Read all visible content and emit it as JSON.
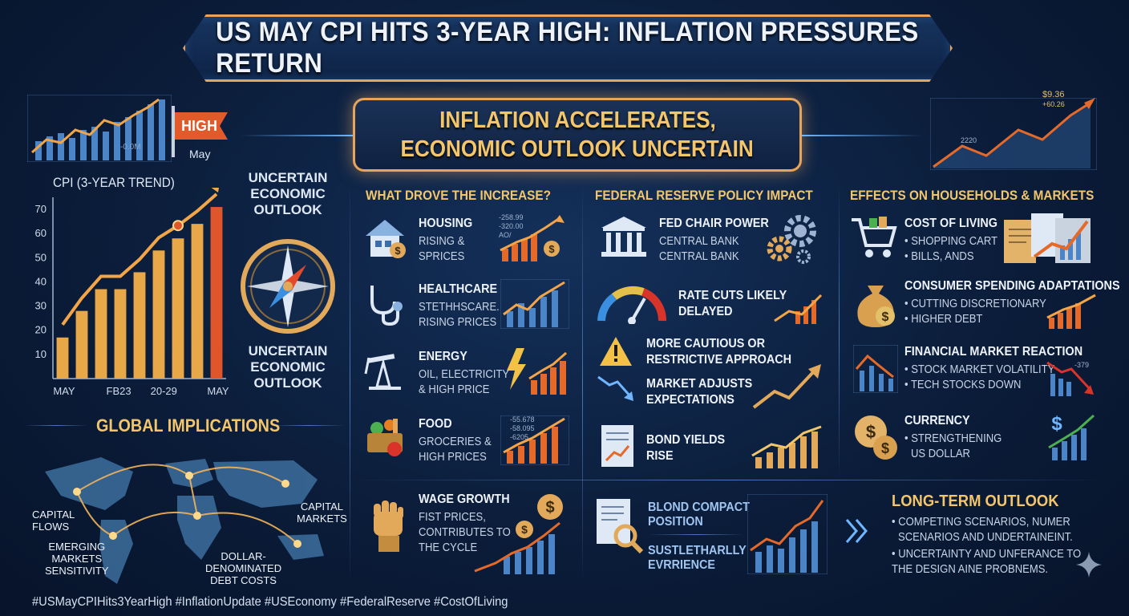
{
  "title": "US MAY CPI HITS 3-YEAR HIGH: INFLATION PRESSURES RETURN",
  "subtitle": [
    "INFLATION ACCELERATES,",
    "ECONOMIC OUTLOOK UNCERTAIN"
  ],
  "left": {
    "flag_label": "HIGH",
    "flag_month": "May",
    "chart_title": "CPI (3-YEAR TREND)",
    "mini_axis_label": "-0.0M",
    "compass_top": [
      "UNCERTAIN",
      "ECONOMIC",
      "OUTLOOK"
    ],
    "compass_bottom": [
      "UNCERTAIN",
      "ECONOMIC",
      "OUTLOOK"
    ],
    "global_title": "GLOBAL IMPLICATIONS",
    "map_labels": {
      "capital_flows": [
        "CAPITAL",
        "FLOWS"
      ],
      "capital_markets": [
        "CAPITAL",
        "MARKETS"
      ],
      "emerging": [
        "EMERGING",
        "MARKETS",
        "SENSITIVITY"
      ],
      "dollar": [
        "DOLLAR-",
        "DENOMINATED",
        "DEBT COSTS"
      ]
    }
  },
  "chart_data": {
    "type": "bar",
    "title": "CPI (3-YEAR TREND)",
    "y_ticks": [
      "70",
      "60",
      "50",
      "40",
      "30",
      "20",
      "10"
    ],
    "x_ticks": [
      "MAY",
      "FB23",
      "20-29",
      "MAY"
    ],
    "values": [
      17,
      28,
      37,
      37,
      44,
      53,
      58,
      64,
      71
    ],
    "ylim": [
      0,
      75
    ]
  },
  "col1": {
    "title": "WHAT DROVE THE INCREASE?",
    "items": [
      {
        "title": "HOUSING",
        "sub": [
          "RISING &",
          "SPRICES"
        ],
        "tags": [
          "-258.99",
          "-320.00",
          "AO/"
        ]
      },
      {
        "title": "HEALTHCARE",
        "sub": [
          "STETHHSCARE.",
          "RISING PRICES"
        ],
        "tags": []
      },
      {
        "title": "ENERGY",
        "sub": [
          "OIL, ELECTRICITY",
          "& HIGH PRICE"
        ],
        "tags": []
      },
      {
        "title": "FOOD",
        "sub": [
          "GROCERIES &",
          "HIGH PRICES"
        ],
        "tags": [
          "-55.678",
          "-58.095",
          "-6205"
        ]
      },
      {
        "title": "WAGE GROWTH",
        "sub": [
          "FIST PRICES,",
          "CONTRIBUTES TO",
          "THE CYCLE"
        ],
        "tags": []
      }
    ]
  },
  "col2": {
    "title": "FEDERAL RESERVE POLICY IMPACT",
    "items": [
      {
        "title": "FED CHAIR POWER",
        "sub": [
          "CENTRAL BANK",
          "CENTRAL BANK"
        ]
      },
      {
        "title": "RATE CUTS LIKELY",
        "sub": [
          "DELAYED"
        ]
      },
      {
        "title": "MORE CAUTIOUS OR",
        "sub": [
          "RESTRICTIVE APPROACH"
        ]
      },
      {
        "title": "MARKET ADJUSTS",
        "sub": [
          "EXPECTATIONS"
        ]
      },
      {
        "title": "BOND YIELDS",
        "sub": [
          "RISE"
        ]
      },
      {
        "title": "BLOND COMPACT",
        "sub": [
          "POSITION"
        ]
      },
      {
        "title": "SUSTLETHARLLY",
        "sub": [
          "EVRRIENCE"
        ]
      }
    ]
  },
  "col3": {
    "title": "EFFECTS ON HOUSEHOLDS & MARKETS",
    "items": [
      {
        "title": "COST OF LIVING",
        "sub": [
          "• SHOPPING CART",
          "• BILLS, ANDS"
        ]
      },
      {
        "title": "CONSUMER SPENDING ADAPTATIONS",
        "sub": [
          "• CUTTING DISCRETIONARY",
          "• HIGHER DEBT"
        ]
      },
      {
        "title": "FINANCIAL MARKET REACTION",
        "sub": [
          "• STOCK MARKET VOLATILITY",
          "• TECH STOCKS DOWN"
        ],
        "tag": "-379"
      },
      {
        "title": "CURRENCY",
        "sub": [
          "• STRENGTHENING",
          "US DOLLAR"
        ]
      }
    ],
    "top_chart_tags": [
      "$9.36",
      "+60.26",
      "2220"
    ]
  },
  "long_term": {
    "title": "LONG-TERM OUTLOOK",
    "lines": [
      "• COMPETING SCENARIOS, NUMER",
      "SCENARIOS AND UNDERTAINEINT.",
      "• UNCERTAINTY AND UNFERANCE TO",
      "THE DESIGN AINE PROBNEMS."
    ]
  },
  "hashtags": "#USMayCPIHits3YearHigh #InflationUpdate #USEconomy #FederalReserve #CostOfLiving",
  "colors": {
    "accent": "#f3c66b",
    "border": "#e8a45a",
    "bg": "#0b1d3a",
    "up": "#e56a2a",
    "bar": "#e8a848"
  }
}
